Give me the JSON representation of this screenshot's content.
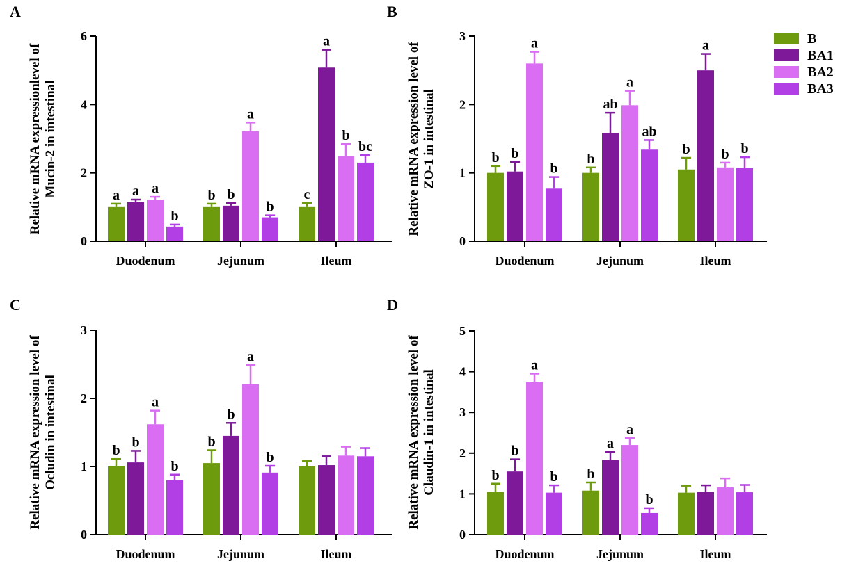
{
  "legend": {
    "series": [
      {
        "name": "B",
        "color": "#6e9a0e"
      },
      {
        "name": "BA1",
        "color": "#7e1a9a"
      },
      {
        "name": "BA2",
        "color": "#d96ef2"
      },
      {
        "name": "BA3",
        "color": "#b23ee6"
      }
    ]
  },
  "chart_data": [
    {
      "panel": "A",
      "type": "bar",
      "ylabel_lines": [
        "Relative mRNA expressionlevel of",
        "Mucin-2 in intestinal"
      ],
      "categories": [
        "Duodenum",
        "Jejunum",
        "Ileum"
      ],
      "ylim": [
        0,
        6
      ],
      "yticks": [
        "0",
        "2",
        "4",
        "6"
      ],
      "series": [
        {
          "name": "B",
          "values": [
            1.0,
            1.0,
            1.0
          ],
          "errors": [
            0.1,
            0.1,
            0.12
          ],
          "labels": [
            "a",
            "b",
            "c"
          ]
        },
        {
          "name": "BA1",
          "values": [
            1.14,
            1.04,
            5.08
          ],
          "errors": [
            0.08,
            0.08,
            0.52
          ],
          "labels": [
            "a",
            "b",
            "a"
          ]
        },
        {
          "name": "BA2",
          "values": [
            1.22,
            3.22,
            2.5
          ],
          "errors": [
            0.08,
            0.25,
            0.35
          ],
          "labels": [
            "a",
            "a",
            "b"
          ]
        },
        {
          "name": "BA3",
          "values": [
            0.43,
            0.7,
            2.3
          ],
          "errors": [
            0.06,
            0.06,
            0.22
          ],
          "labels": [
            "b",
            "b",
            "bc"
          ]
        }
      ]
    },
    {
      "panel": "B",
      "type": "bar",
      "ylabel_lines": [
        "Relative mRNA expression level of",
        "ZO-1 in intestinal"
      ],
      "categories": [
        "Duodenum",
        "Jejunum",
        "Ileum"
      ],
      "ylim": [
        0,
        3
      ],
      "yticks": [
        "0",
        "1",
        "2",
        "3"
      ],
      "series": [
        {
          "name": "B",
          "values": [
            1.0,
            1.0,
            1.05
          ],
          "errors": [
            0.1,
            0.08,
            0.17
          ],
          "labels": [
            "b",
            "b",
            "b"
          ]
        },
        {
          "name": "BA1",
          "values": [
            1.02,
            1.58,
            2.5
          ],
          "errors": [
            0.14,
            0.3,
            0.24
          ],
          "labels": [
            "b",
            "ab",
            "a"
          ]
        },
        {
          "name": "BA2",
          "values": [
            2.6,
            1.99,
            1.08
          ],
          "errors": [
            0.17,
            0.21,
            0.07
          ],
          "labels": [
            "a",
            "a",
            "b"
          ]
        },
        {
          "name": "BA3",
          "values": [
            0.77,
            1.34,
            1.07
          ],
          "errors": [
            0.17,
            0.14,
            0.16
          ],
          "labels": [
            "b",
            "ab",
            "b"
          ]
        }
      ]
    },
    {
      "panel": "C",
      "type": "bar",
      "ylabel_lines": [
        "Relative mRNA expression level of",
        "Ocludin in intestinal"
      ],
      "categories": [
        "Duodenum",
        "Jejunum",
        "Ileum"
      ],
      "ylim": [
        0,
        3
      ],
      "yticks": [
        "0",
        "1",
        "2",
        "3"
      ],
      "series": [
        {
          "name": "B",
          "values": [
            1.01,
            1.05,
            1.0
          ],
          "errors": [
            0.1,
            0.19,
            0.08
          ],
          "labels": [
            "b",
            "b",
            ""
          ]
        },
        {
          "name": "BA1",
          "values": [
            1.06,
            1.45,
            1.02
          ],
          "errors": [
            0.17,
            0.19,
            0.13
          ],
          "labels": [
            "b",
            "b",
            ""
          ]
        },
        {
          "name": "BA2",
          "values": [
            1.62,
            2.21,
            1.16
          ],
          "errors": [
            0.2,
            0.28,
            0.13
          ],
          "labels": [
            "a",
            "a",
            ""
          ]
        },
        {
          "name": "BA3",
          "values": [
            0.8,
            0.91,
            1.15
          ],
          "errors": [
            0.08,
            0.1,
            0.12
          ],
          "labels": [
            "b",
            "b",
            ""
          ]
        }
      ]
    },
    {
      "panel": "D",
      "type": "bar",
      "ylabel_lines": [
        "Relative mRNA expression level of",
        "Claudin-1 in intestinal"
      ],
      "categories": [
        "Duodenum",
        "Jejunum",
        "Ileum"
      ],
      "ylim": [
        0,
        5
      ],
      "yticks": [
        "0",
        "1",
        "2",
        "3",
        "4",
        "5"
      ],
      "series": [
        {
          "name": "B",
          "values": [
            1.05,
            1.08,
            1.03
          ],
          "errors": [
            0.2,
            0.2,
            0.17
          ],
          "labels": [
            "b",
            "b",
            ""
          ]
        },
        {
          "name": "BA1",
          "values": [
            1.55,
            1.83,
            1.05
          ],
          "errors": [
            0.3,
            0.2,
            0.16
          ],
          "labels": [
            "b",
            "a",
            ""
          ]
        },
        {
          "name": "BA2",
          "values": [
            3.75,
            2.2,
            1.16
          ],
          "errors": [
            0.2,
            0.17,
            0.22
          ],
          "labels": [
            "a",
            "a",
            ""
          ]
        },
        {
          "name": "BA3",
          "values": [
            1.03,
            0.53,
            1.04
          ],
          "errors": [
            0.18,
            0.12,
            0.18
          ],
          "labels": [
            "b",
            "b",
            ""
          ]
        }
      ]
    }
  ]
}
